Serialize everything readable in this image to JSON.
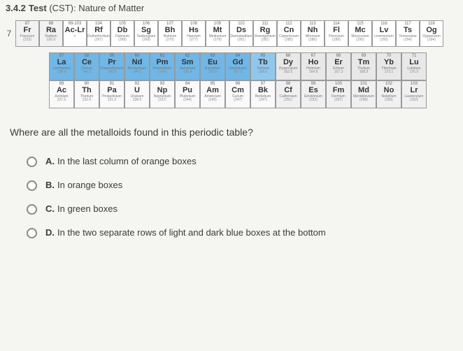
{
  "header": {
    "section": "3.4.2",
    "title": "Test",
    "paren": "(CST):",
    "subtitle": "Nature of Matter"
  },
  "periodLabel": "7",
  "row7": [
    {
      "num": "87",
      "sym": "Fr",
      "name": "Francium",
      "mass": "(223)",
      "bg": "#f2f2f2"
    },
    {
      "num": "88",
      "sym": "Ra",
      "name": "Radium",
      "mass": "226.0",
      "bg": "#f2f2f2"
    },
    {
      "num": "89-103",
      "sym": "Ac-Lr",
      "name": "+",
      "mass": "",
      "bg": "#ffffff"
    },
    {
      "num": "104",
      "sym": "Rf",
      "name": "Rutherfordium",
      "mass": "(267)",
      "bg": "#ffffff"
    },
    {
      "num": "105",
      "sym": "Db",
      "name": "Dubnium",
      "mass": "(268)",
      "bg": "#ffffff"
    },
    {
      "num": "106",
      "sym": "Sg",
      "name": "Seaborgium",
      "mass": "(269)",
      "bg": "#ffffff"
    },
    {
      "num": "107",
      "sym": "Bh",
      "name": "Bohrium",
      "mass": "(270)",
      "bg": "#ffffff"
    },
    {
      "num": "108",
      "sym": "Hs",
      "name": "Hassium",
      "mass": "(277)",
      "bg": "#ffffff"
    },
    {
      "num": "109",
      "sym": "Mt",
      "name": "Meitnerium",
      "mass": "(278)",
      "bg": "#ffffff"
    },
    {
      "num": "110",
      "sym": "Ds",
      "name": "Darmstadtium",
      "mass": "(281)",
      "bg": "#ffffff"
    },
    {
      "num": "111",
      "sym": "Rg",
      "name": "Roentgenium",
      "mass": "(282)",
      "bg": "#ffffff"
    },
    {
      "num": "112",
      "sym": "Cn",
      "name": "Copernicium",
      "mass": "(285)",
      "bg": "#ffffff"
    },
    {
      "num": "113",
      "sym": "Nh",
      "name": "Nihonium",
      "mass": "(286)",
      "bg": "#ffffff"
    },
    {
      "num": "114",
      "sym": "Fl",
      "name": "Flerovium",
      "mass": "(289)",
      "bg": "#ffffff"
    },
    {
      "num": "115",
      "sym": "Mc",
      "name": "Moscovium",
      "mass": "(290)",
      "bg": "#ffffff"
    },
    {
      "num": "116",
      "sym": "Lv",
      "name": "Livermorium",
      "mass": "(293)",
      "bg": "#ffffff"
    },
    {
      "num": "117",
      "sym": "Ts",
      "name": "Tennessine",
      "mass": "(294)",
      "bg": "#ffffff"
    },
    {
      "num": "118",
      "sym": "Og",
      "name": "Oganesson",
      "mass": "(294)",
      "bg": "#ffffff"
    }
  ],
  "lanth": [
    {
      "num": "57",
      "sym": "La",
      "name": "Lanthanum",
      "mass": "138.9",
      "bg": "#6fb7e6"
    },
    {
      "num": "58",
      "sym": "Ce",
      "name": "Cerium",
      "mass": "140.1",
      "bg": "#6fb7e6"
    },
    {
      "num": "59",
      "sym": "Pr",
      "name": "Praseodymium",
      "mass": "140.9",
      "bg": "#6fb7e6"
    },
    {
      "num": "60",
      "sym": "Nd",
      "name": "Neodymium",
      "mass": "144.2",
      "bg": "#6fb7e6"
    },
    {
      "num": "61",
      "sym": "Pm",
      "name": "Promethium",
      "mass": "(145)",
      "bg": "#6fb7e6"
    },
    {
      "num": "62",
      "sym": "Sm",
      "name": "Samarium",
      "mass": "150.4",
      "bg": "#6fb7e6"
    },
    {
      "num": "63",
      "sym": "Eu",
      "name": "Europium",
      "mass": "152.0",
      "bg": "#6fb7e6"
    },
    {
      "num": "64",
      "sym": "Gd",
      "name": "Gadolinium",
      "mass": "157.3",
      "bg": "#6fb7e6"
    },
    {
      "num": "65",
      "sym": "Tb",
      "name": "Terbium",
      "mass": "158.9",
      "bg": "#8fc8ed"
    },
    {
      "num": "66",
      "sym": "Dy",
      "name": "Dysprosium",
      "mass": "162.5",
      "bg": "#e8e8e8"
    },
    {
      "num": "67",
      "sym": "Ho",
      "name": "Holmium",
      "mass": "164.9",
      "bg": "#e8e8e8"
    },
    {
      "num": "68",
      "sym": "Er",
      "name": "Erbium",
      "mass": "167.3",
      "bg": "#e8e8e8"
    },
    {
      "num": "69",
      "sym": "Tm",
      "name": "Thulium",
      "mass": "168.9",
      "bg": "#e8e8e8"
    },
    {
      "num": "70",
      "sym": "Yb",
      "name": "Ytterbium",
      "mass": "173.1",
      "bg": "#e8e8e8"
    },
    {
      "num": "71",
      "sym": "Lu",
      "name": "Lutetium",
      "mass": "175.0",
      "bg": "#e8e8e8"
    }
  ],
  "actin": [
    {
      "num": "89",
      "sym": "Ac",
      "name": "Actinium",
      "mass": "227.0",
      "bg": "#f9f9f9"
    },
    {
      "num": "90",
      "sym": "Th",
      "name": "Thorium",
      "mass": "232.0",
      "bg": "#f9f9f9"
    },
    {
      "num": "91",
      "sym": "Pa",
      "name": "Protactinium",
      "mass": "231.0",
      "bg": "#f9f9f9"
    },
    {
      "num": "92",
      "sym": "U",
      "name": "Uranium",
      "mass": "238.0",
      "bg": "#f9f9f9"
    },
    {
      "num": "93",
      "sym": "Np",
      "name": "Neptunium",
      "mass": "(237)",
      "bg": "#f9f9f9"
    },
    {
      "num": "94",
      "sym": "Pu",
      "name": "Plutonium",
      "mass": "(244)",
      "bg": "#f9f9f9"
    },
    {
      "num": "95",
      "sym": "Am",
      "name": "Americium",
      "mass": "(243)",
      "bg": "#f9f9f9"
    },
    {
      "num": "96",
      "sym": "Cm",
      "name": "Curium",
      "mass": "(247)",
      "bg": "#f9f9f9"
    },
    {
      "num": "97",
      "sym": "Bk",
      "name": "Berkelium",
      "mass": "(247)",
      "bg": "#f9f9f9"
    },
    {
      "num": "98",
      "sym": "Cf",
      "name": "Californium",
      "mass": "(251)",
      "bg": "#f0f0f0"
    },
    {
      "num": "99",
      "sym": "Es",
      "name": "Einsteinium",
      "mass": "(252)",
      "bg": "#f0f0f0"
    },
    {
      "num": "100",
      "sym": "Fm",
      "name": "Fermium",
      "mass": "(257)",
      "bg": "#f0f0f0"
    },
    {
      "num": "101",
      "sym": "Md",
      "name": "Mendelevium",
      "mass": "(258)",
      "bg": "#f0f0f0"
    },
    {
      "num": "102",
      "sym": "No",
      "name": "Nobelium",
      "mass": "(259)",
      "bg": "#f0f0f0"
    },
    {
      "num": "103",
      "sym": "Lr",
      "name": "Lawrencium",
      "mass": "(262)",
      "bg": "#f0f0f0"
    }
  ],
  "question": "Where are all the metalloids found in this periodic table?",
  "options": [
    {
      "letter": "A.",
      "text": "In the last column of orange boxes"
    },
    {
      "letter": "B.",
      "text": "In orange boxes"
    },
    {
      "letter": "C.",
      "text": "In green boxes"
    },
    {
      "letter": "D.",
      "text": "In the two separate rows of light and dark blue boxes at the bottom"
    }
  ]
}
